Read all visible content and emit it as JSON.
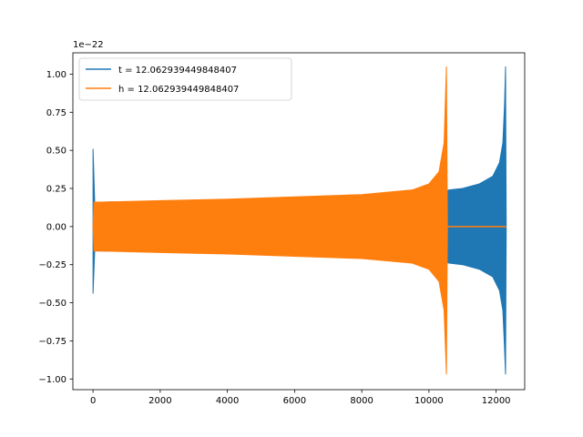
{
  "chart_data": {
    "type": "line",
    "offset_label": "1e−22",
    "legend_position": "upper-left",
    "grid": false,
    "xlim": [
      -600,
      12850
    ],
    "ylim": [
      -1.07,
      1.14
    ],
    "x_ticks": [
      0,
      2000,
      4000,
      6000,
      8000,
      10000,
      12000
    ],
    "x_tick_labels": [
      "0",
      "2000",
      "4000",
      "6000",
      "8000",
      "10000",
      "12000"
    ],
    "y_ticks": [
      1.0,
      0.75,
      0.5,
      0.25,
      0.0,
      -0.25,
      -0.5,
      -0.75,
      -1.0
    ],
    "y_tick_labels": [
      "1.00",
      "0.75",
      "0.50",
      "0.25",
      "0.00",
      "−0.25",
      "−0.50",
      "−0.75",
      "−1.00"
    ],
    "series": [
      {
        "name": "t = 12.062939449848407",
        "color": "#1f77b4",
        "envelope": {
          "x": [
            0,
            50,
            100,
            2000,
            4000,
            6000,
            8000,
            10000,
            10400,
            10600,
            11000,
            11500,
            11900,
            12100,
            12200,
            12250,
            12280,
            12300
          ],
          "top": [
            0.51,
            0.16,
            0.16,
            0.165,
            0.175,
            0.185,
            0.2,
            0.225,
            0.23,
            0.24,
            0.25,
            0.28,
            0.33,
            0.42,
            0.55,
            0.8,
            1.05,
            0.0
          ],
          "bot": [
            -0.44,
            -0.16,
            -0.16,
            -0.165,
            -0.175,
            -0.185,
            -0.2,
            -0.225,
            -0.23,
            -0.24,
            -0.25,
            -0.28,
            -0.33,
            -0.42,
            -0.55,
            -0.8,
            -0.97,
            0.0
          ]
        }
      },
      {
        "name": "h = 12.062939449848407",
        "color": "#ff7f0e",
        "envelope": {
          "x": [
            0,
            30,
            100,
            2000,
            4000,
            6000,
            8000,
            9500,
            10000,
            10300,
            10450,
            10520,
            10550,
            10580,
            12300
          ],
          "top": [
            0.0,
            0.16,
            0.16,
            0.17,
            0.18,
            0.195,
            0.21,
            0.24,
            0.28,
            0.36,
            0.55,
            1.05,
            0.0,
            0.0,
            0.0
          ],
          "bot": [
            0.0,
            -0.16,
            -0.16,
            -0.17,
            -0.18,
            -0.195,
            -0.21,
            -0.24,
            -0.28,
            -0.36,
            -0.55,
            -0.97,
            0.0,
            0.0,
            0.0
          ]
        }
      }
    ]
  }
}
